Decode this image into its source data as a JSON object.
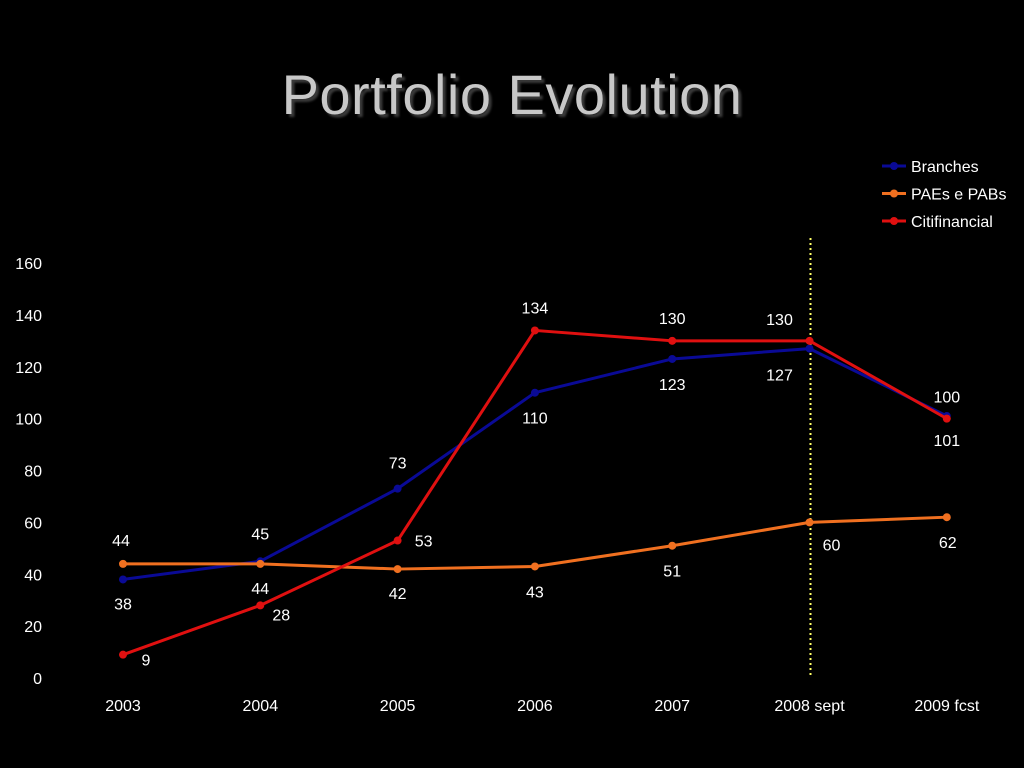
{
  "title": "Portfolio Evolution",
  "chart_data": {
    "type": "line",
    "categories": [
      "2003",
      "2004",
      "2005",
      "2006",
      "2007",
      "2008 sept",
      "2009 fcst"
    ],
    "ylim": [
      0,
      160
    ],
    "yticks": [
      0,
      20,
      40,
      60,
      80,
      100,
      120,
      140,
      160
    ],
    "grid": false,
    "legend": "top-right",
    "marker_line_after": "2008 sept",
    "series": [
      {
        "name": "Branches",
        "color": "#0a0a96",
        "values": [
          38,
          45,
          73,
          110,
          123,
          127,
          101
        ],
        "labels": [
          "38",
          "45",
          "73",
          "110",
          "123",
          "127",
          "101"
        ]
      },
      {
        "name": "PAEs e PABs",
        "color": "#f07020",
        "values": [
          44,
          44,
          42,
          43,
          51,
          60,
          62
        ],
        "labels": [
          "44",
          "44",
          "42",
          "43",
          "51",
          "60",
          "62"
        ]
      },
      {
        "name": "Citifinancial",
        "color": "#e01010",
        "values": [
          9,
          28,
          53,
          134,
          130,
          130,
          100
        ],
        "labels": [
          "9",
          "28",
          "53",
          "134",
          "130",
          "130",
          "100"
        ]
      }
    ]
  }
}
